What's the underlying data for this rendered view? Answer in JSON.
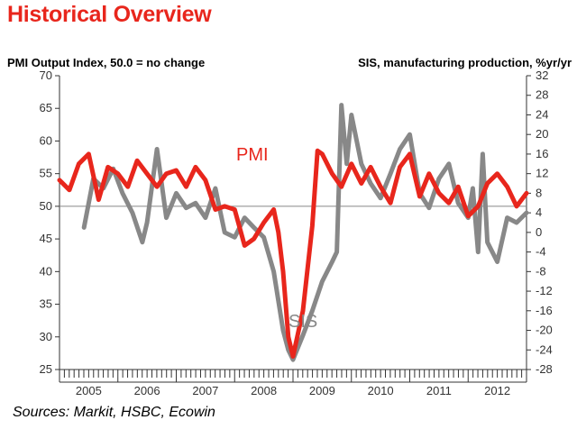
{
  "header": {
    "title": "Historical Overview"
  },
  "footer": {
    "source": "Sources: Markit, HSBC, Ecowin"
  },
  "chart_data": {
    "type": "line",
    "title": "Historical Overview",
    "ylabel": "PMI Output Index, 50.0 = no change",
    "y2label": "SIS, manufacturing production, %yr/yr",
    "ylim": [
      25,
      70
    ],
    "y2lim": [
      -28,
      32
    ],
    "yticks": [
      25,
      30,
      35,
      40,
      45,
      50,
      55,
      60,
      65,
      70
    ],
    "y2ticks": [
      32,
      28,
      24,
      20,
      16,
      12,
      8,
      4,
      0,
      -4,
      -8,
      -12,
      -16,
      -20,
      -24,
      -28
    ],
    "reference_line": 50,
    "x_range": [
      2005.0,
      2013.0
    ],
    "year_labels": [
      "2005",
      "2006",
      "2007",
      "2008",
      "2009",
      "2010",
      "2011",
      "2012"
    ],
    "annotations": [
      {
        "text": "PMI",
        "series": "PMI"
      },
      {
        "text": "SIS",
        "series": "SIS"
      }
    ],
    "series": [
      {
        "name": "PMI",
        "axis": "left",
        "color": "#e8261c",
        "x": [
          2005.0,
          2005.17,
          2005.33,
          2005.5,
          2005.67,
          2005.75,
          2005.83,
          2006.0,
          2006.17,
          2006.33,
          2006.5,
          2006.67,
          2006.83,
          2007.0,
          2007.17,
          2007.33,
          2007.5,
          2007.67,
          2007.83,
          2008.0,
          2008.17,
          2008.33,
          2008.5,
          2008.67,
          2008.75,
          2008.83,
          2008.92,
          2009.0,
          2009.17,
          2009.33,
          2009.42,
          2009.5,
          2009.67,
          2009.83,
          2010.0,
          2010.17,
          2010.33,
          2010.5,
          2010.67,
          2010.83,
          2011.0,
          2011.17,
          2011.33,
          2011.5,
          2011.67,
          2011.83,
          2012.0,
          2012.17,
          2012.33,
          2012.5,
          2012.67,
          2012.83,
          2013.0
        ],
        "values": [
          54,
          52.5,
          56.5,
          58,
          51,
          53.5,
          56,
          55,
          53,
          57,
          55,
          53,
          55,
          55.5,
          53,
          56,
          54,
          49.5,
          50,
          49.5,
          44,
          45,
          47.5,
          49.5,
          46,
          40,
          30,
          27,
          34,
          47,
          58.5,
          58,
          55,
          53,
          56.5,
          53.5,
          56,
          53,
          50.5,
          56,
          58,
          51.5,
          55,
          52,
          50.5,
          53,
          48.5,
          50,
          53.5,
          55,
          53,
          50,
          52
        ]
      },
      {
        "name": "SIS",
        "axis": "right",
        "color": "#888888",
        "x": [
          2005.42,
          2005.58,
          2005.75,
          2005.92,
          2006.08,
          2006.25,
          2006.42,
          2006.5,
          2006.67,
          2006.83,
          2007.0,
          2007.17,
          2007.33,
          2007.5,
          2007.67,
          2007.83,
          2008.0,
          2008.17,
          2008.33,
          2008.5,
          2008.67,
          2008.83,
          2008.92,
          2009.0,
          2009.17,
          2009.33,
          2009.5,
          2009.67,
          2009.75,
          2009.83,
          2009.92,
          2010.0,
          2010.17,
          2010.33,
          2010.5,
          2010.67,
          2010.83,
          2011.0,
          2011.17,
          2011.33,
          2011.5,
          2011.67,
          2011.83,
          2012.0,
          2012.08,
          2012.17,
          2012.25,
          2012.33,
          2012.5,
          2012.67,
          2012.83,
          2013.0
        ],
        "values": [
          1,
          11,
          9,
          13,
          8,
          4,
          -2,
          2,
          17,
          3,
          8,
          5,
          6,
          3,
          9,
          0,
          -1,
          3,
          1,
          -1,
          -8,
          -20,
          -24,
          -26,
          -21,
          -16,
          -10,
          -6,
          -4,
          26,
          14,
          24,
          14,
          10,
          7,
          12,
          17,
          20,
          8,
          5,
          11,
          14,
          6,
          3,
          9,
          -4,
          16,
          -2,
          -6,
          3,
          2,
          4
        ]
      }
    ]
  }
}
